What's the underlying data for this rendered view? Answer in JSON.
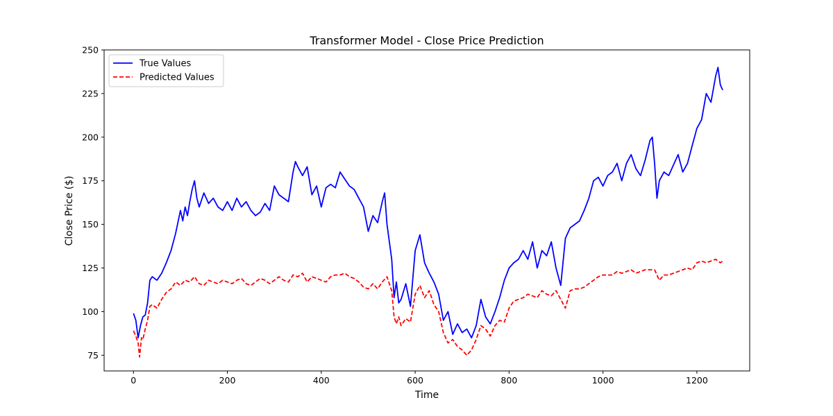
{
  "chart_data": {
    "type": "line",
    "title": "Transformer Model - Close Price Prediction",
    "xlabel": "Time",
    "ylabel": "Close Price ($)",
    "xlim": [
      -62.5,
      1312.5
    ],
    "ylim": [
      66,
      250
    ],
    "xticks": [
      0,
      200,
      400,
      600,
      800,
      1000,
      1200
    ],
    "yticks": [
      75,
      100,
      125,
      150,
      175,
      200,
      225,
      250
    ],
    "grid": false,
    "legend_position": "top-left",
    "series": [
      {
        "name": "True Values",
        "color": "#0000ff",
        "dash": "solid",
        "x": [
          0,
          5,
          10,
          15,
          20,
          25,
          30,
          35,
          40,
          50,
          60,
          70,
          80,
          90,
          100,
          105,
          110,
          115,
          120,
          125,
          130,
          135,
          140,
          150,
          160,
          170,
          180,
          190,
          200,
          210,
          220,
          230,
          240,
          250,
          260,
          270,
          280,
          290,
          300,
          310,
          320,
          330,
          340,
          345,
          350,
          360,
          370,
          380,
          390,
          400,
          410,
          420,
          430,
          440,
          450,
          460,
          470,
          480,
          490,
          500,
          510,
          520,
          530,
          535,
          540,
          545,
          550,
          555,
          560,
          565,
          570,
          580,
          590,
          600,
          610,
          620,
          630,
          640,
          650,
          660,
          670,
          680,
          690,
          700,
          710,
          720,
          730,
          740,
          750,
          760,
          770,
          780,
          790,
          800,
          810,
          820,
          830,
          840,
          850,
          860,
          870,
          880,
          890,
          900,
          910,
          920,
          930,
          940,
          950,
          960,
          970,
          980,
          990,
          1000,
          1010,
          1020,
          1030,
          1040,
          1050,
          1060,
          1070,
          1080,
          1090,
          1100,
          1105,
          1110,
          1115,
          1120,
          1130,
          1140,
          1150,
          1160,
          1170,
          1180,
          1190,
          1200,
          1210,
          1220,
          1230,
          1240,
          1245,
          1250,
          1255
        ],
        "y": [
          99,
          95,
          85,
          92,
          97,
          98,
          105,
          118,
          120,
          118,
          122,
          128,
          135,
          145,
          158,
          152,
          160,
          155,
          163,
          170,
          175,
          165,
          160,
          168,
          162,
          165,
          160,
          158,
          163,
          158,
          165,
          160,
          163,
          158,
          155,
          157,
          162,
          158,
          172,
          167,
          165,
          163,
          180,
          186,
          183,
          178,
          183,
          167,
          172,
          160,
          171,
          173,
          171,
          180,
          176,
          172,
          170,
          165,
          160,
          146,
          155,
          151,
          163,
          168,
          150,
          140,
          130,
          108,
          117,
          105,
          107,
          116,
          103,
          135,
          144,
          128,
          122,
          117,
          110,
          95,
          100,
          87,
          93,
          88,
          90,
          85,
          92,
          107,
          97,
          93,
          100,
          108,
          118,
          125,
          128,
          130,
          135,
          130,
          140,
          125,
          135,
          132,
          140,
          125,
          115,
          142,
          148,
          150,
          152,
          158,
          165,
          175,
          177,
          172,
          178,
          180,
          185,
          175,
          185,
          190,
          182,
          178,
          187,
          198,
          200,
          185,
          165,
          175,
          180,
          178,
          184,
          190,
          180,
          185,
          195,
          205,
          210,
          225,
          220,
          235,
          240,
          230,
          227
        ]
      },
      {
        "name": "Predicted Values",
        "color": "#ff0000",
        "dash": "dashed",
        "x": [
          0,
          5,
          10,
          13,
          17,
          20,
          25,
          30,
          35,
          40,
          50,
          60,
          70,
          80,
          90,
          100,
          110,
          120,
          130,
          140,
          150,
          160,
          170,
          180,
          190,
          200,
          210,
          220,
          230,
          240,
          250,
          260,
          270,
          280,
          290,
          300,
          310,
          320,
          330,
          340,
          350,
          360,
          370,
          380,
          390,
          400,
          410,
          420,
          430,
          440,
          450,
          460,
          470,
          480,
          490,
          500,
          510,
          520,
          530,
          540,
          550,
          555,
          560,
          565,
          570,
          580,
          590,
          600,
          610,
          620,
          630,
          640,
          650,
          660,
          670,
          680,
          690,
          700,
          710,
          720,
          730,
          740,
          750,
          760,
          770,
          780,
          790,
          800,
          810,
          820,
          830,
          840,
          850,
          860,
          870,
          880,
          890,
          900,
          910,
          920,
          930,
          940,
          950,
          960,
          970,
          980,
          990,
          1000,
          1010,
          1020,
          1030,
          1040,
          1050,
          1060,
          1070,
          1080,
          1090,
          1100,
          1110,
          1120,
          1130,
          1140,
          1150,
          1160,
          1170,
          1180,
          1190,
          1200,
          1210,
          1220,
          1230,
          1240,
          1250,
          1255
        ],
        "y": [
          89,
          86,
          82,
          74,
          85,
          84,
          90,
          95,
          103,
          104,
          102,
          107,
          111,
          113,
          117,
          115,
          118,
          117,
          120,
          116,
          115,
          118,
          117,
          116,
          118,
          117,
          116,
          118,
          119,
          116,
          115,
          117,
          119,
          118,
          116,
          118,
          120,
          118,
          117,
          121,
          120,
          122,
          117,
          120,
          119,
          118,
          117,
          120,
          121,
          121,
          122,
          120,
          119,
          117,
          114,
          113,
          116,
          113,
          117,
          120,
          112,
          97,
          93,
          97,
          92,
          96,
          94,
          110,
          115,
          108,
          112,
          104,
          100,
          88,
          82,
          84,
          80,
          78,
          75,
          78,
          84,
          92,
          90,
          86,
          92,
          95,
          94,
          102,
          106,
          107,
          108,
          110,
          109,
          108,
          112,
          110,
          109,
          112,
          107,
          102,
          112,
          113,
          113,
          114,
          116,
          118,
          120,
          121,
          121,
          121,
          123,
          122,
          123,
          124,
          122,
          123,
          124,
          124,
          124,
          118,
          121,
          121,
          122,
          123,
          124,
          125,
          124,
          128,
          129,
          128,
          129,
          130,
          128,
          129
        ]
      }
    ]
  }
}
